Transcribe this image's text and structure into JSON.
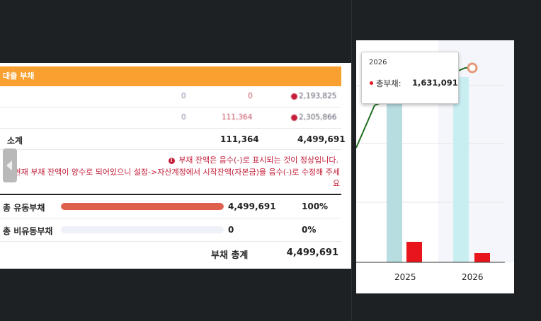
{
  "left_panel": {
    "section_title": "대출 부채",
    "rows": [
      {
        "col1": "0",
        "col2": "0",
        "col3": "2,193,825"
      },
      {
        "col1": "0",
        "col2": "111,364",
        "col3": "2,305,866"
      }
    ],
    "subtotal": {
      "label": "소계",
      "col2": "111,364",
      "col3": "4,499,691"
    },
    "notice": {
      "icon": "!",
      "line1": "부채 잔액은 음수(-)로 표시되는 것이 정상입니다.",
      "line2": "현재 부채 잔액이 양수로 되어있으니 설정->자산계정에서 시작잔액(자본금)을 음수(-)로 수정해 주세요"
    },
    "summary": [
      {
        "label": "총 유동부채",
        "amount": "4,499,691",
        "percent": "100%",
        "fill": 1.0
      },
      {
        "label": "총 비유동부채",
        "amount": "0",
        "percent": "0%",
        "fill": 0.0
      }
    ],
    "total": {
      "label": "부채 총계",
      "value": "4,499,691"
    }
  },
  "chart": {
    "tooltip": {
      "year": "2026",
      "series": "총부채:",
      "value": "1,631,091"
    },
    "colors": {
      "light_bar": "#b7dde1",
      "light_bar_2": "#c9eef2",
      "red_bar": "#e8151c",
      "line": "#1f6e1f",
      "marker": "#e49a7a"
    }
  },
  "chart_data": {
    "type": "bar",
    "categories": [
      "2025",
      "2026"
    ],
    "series": [
      {
        "name": "총부채",
        "values": [
          null,
          1631091
        ]
      }
    ]
  }
}
